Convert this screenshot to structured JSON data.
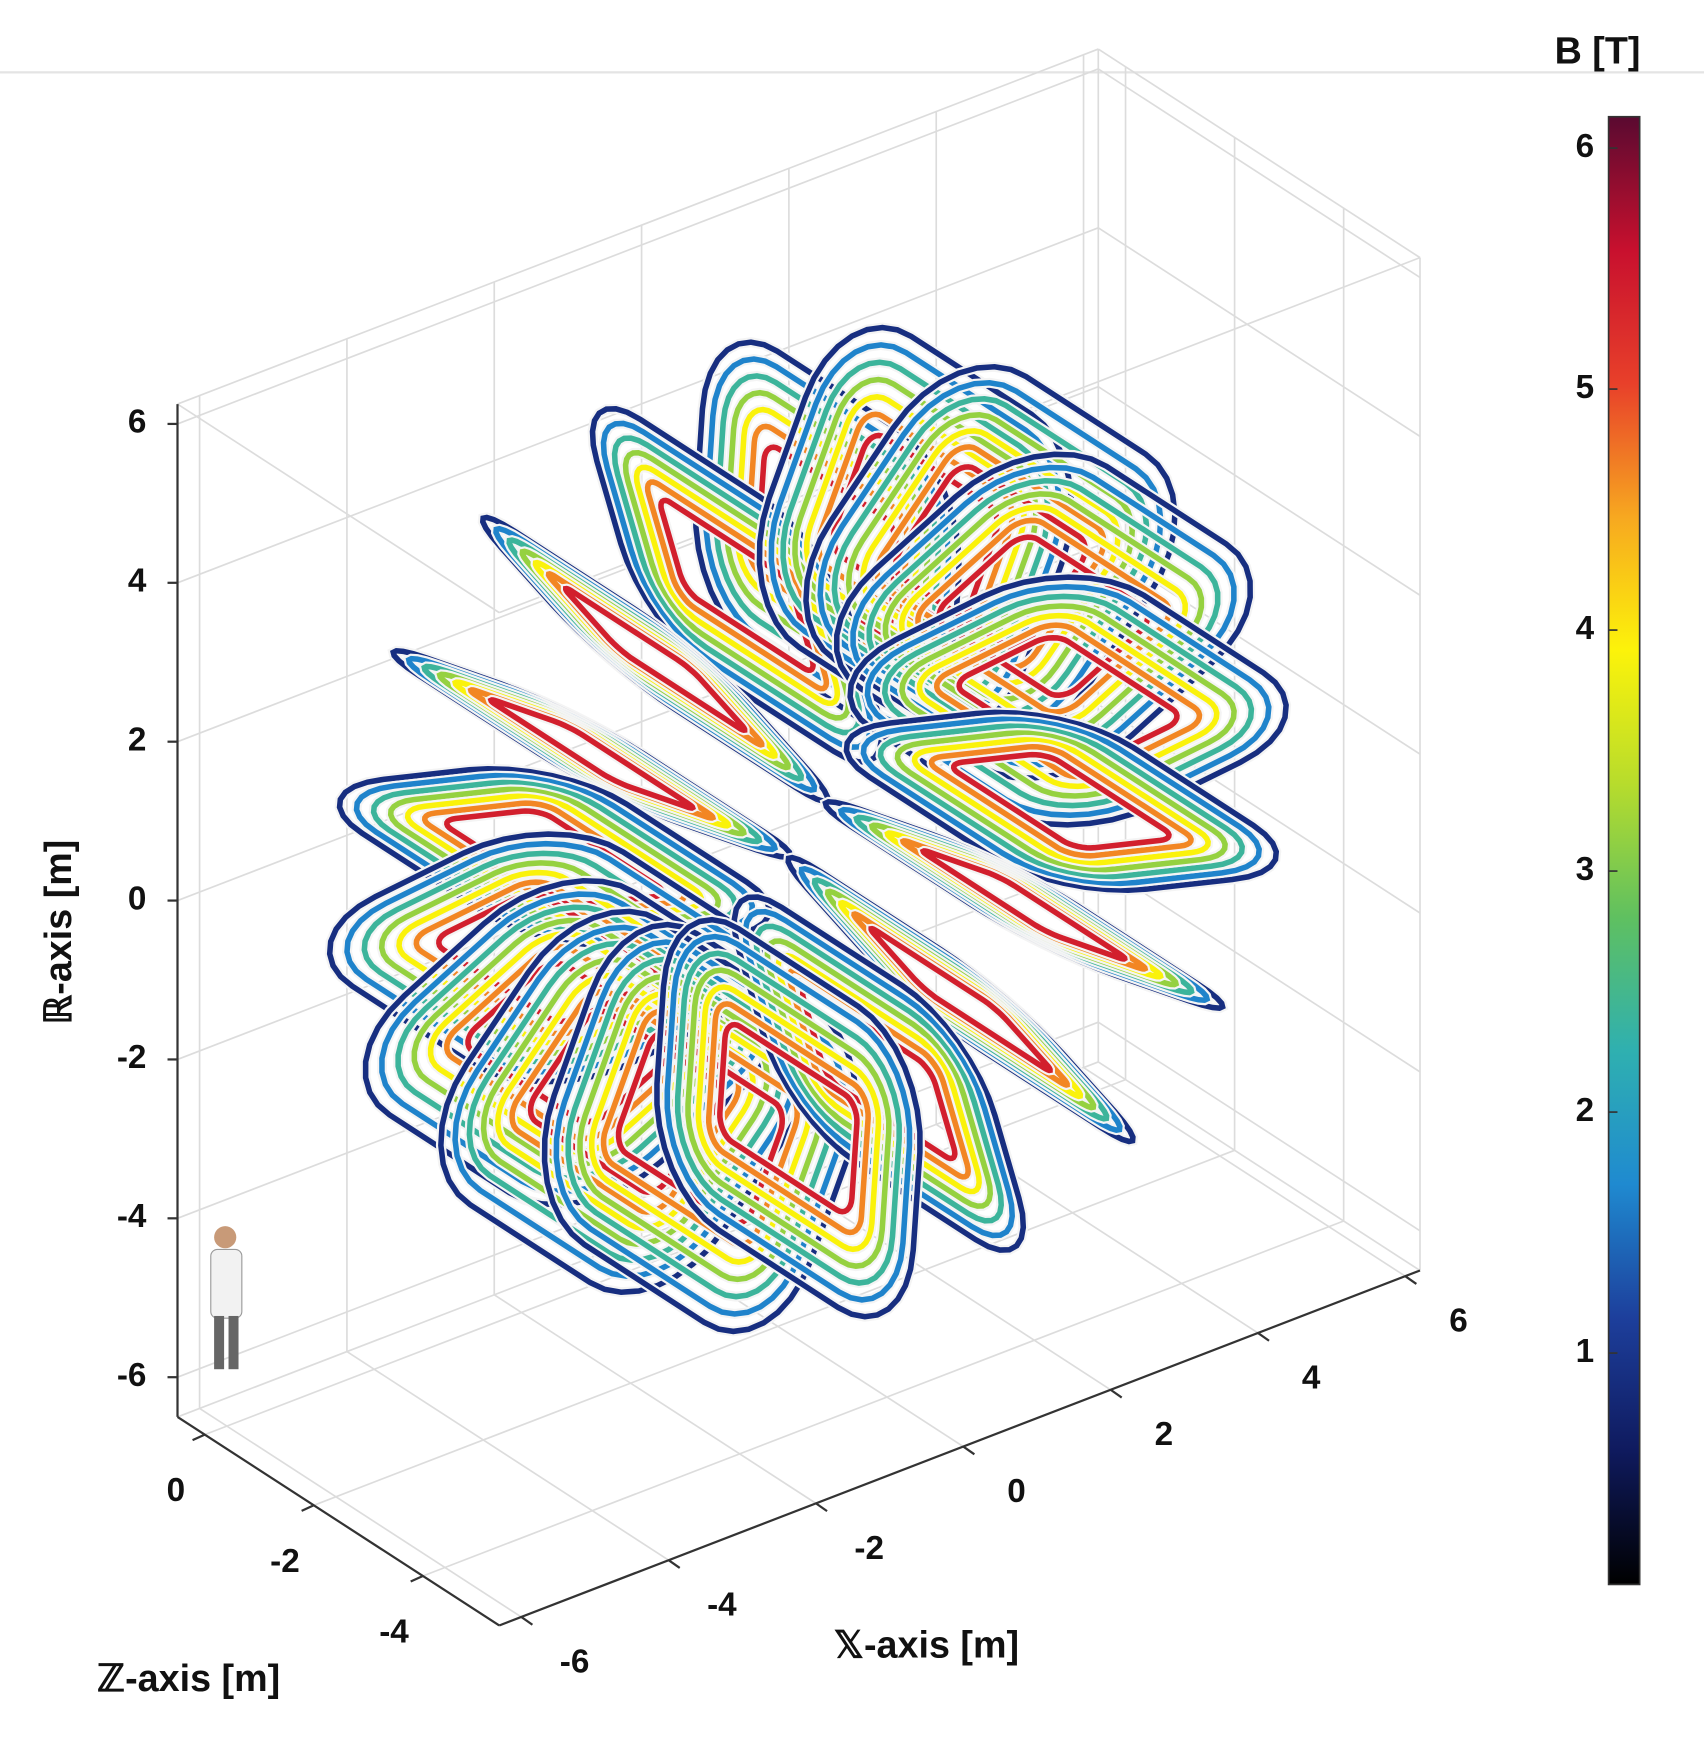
{
  "chart_data": {
    "type": "coil3d",
    "xlabel": "𝕏-axis [m]",
    "ylabel": "ℝ-axis [m]",
    "zlabel": "ℤ-axis [m]",
    "xlim": [
      -6.3,
      6.2
    ],
    "xticks": [
      -6,
      -4,
      -2,
      0,
      2,
      4,
      6
    ],
    "ylim": [
      -6.5,
      6.25
    ],
    "yticks": [
      -6,
      -4,
      -2,
      0,
      2,
      4,
      6
    ],
    "zlim": [
      -5.4,
      0.5
    ],
    "zticks": [
      -4,
      -2,
      0
    ],
    "grid": true,
    "colorbar": {
      "label": "B [T]",
      "lim": [
        0.04,
        6.13
      ],
      "ticks": [
        1,
        2,
        3,
        4,
        5,
        6
      ],
      "colormap": [
        "#000000",
        "#0f1a5e",
        "#1d3f9c",
        "#1f8ad0",
        "#2fb0b0",
        "#5fc060",
        "#b7dc2c",
        "#fcf30a",
        "#f7a820",
        "#e8402a",
        "#c8102e",
        "#5a0a30"
      ]
    }
  }
}
